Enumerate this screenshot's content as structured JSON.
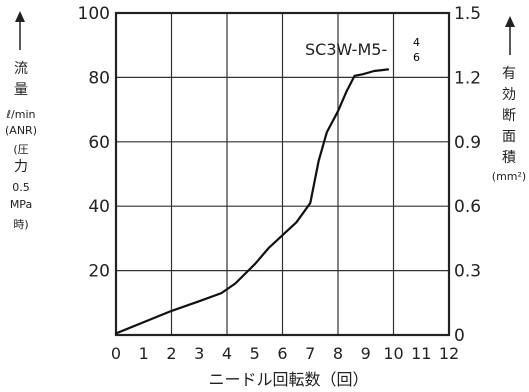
{
  "chart_data": {
    "type": "line",
    "title": "",
    "xlabel": "ニードル回転数（回）",
    "ylabel_left": [
      "流",
      "量",
      "ℓ/min",
      "(ANR)",
      "(圧",
      "力",
      "0.5",
      "MPa",
      "時)"
    ],
    "ylabel_right": [
      "有",
      "効",
      "断",
      "面",
      "積",
      "(mm²)"
    ],
    "xlim": [
      0,
      12
    ],
    "ylim_left": [
      0,
      100
    ],
    "ylim_right": [
      0,
      1.5
    ],
    "x_ticks": [
      "0",
      "1",
      "2",
      "3",
      "4",
      "5",
      "6",
      "7",
      "8",
      "9",
      "10",
      "11",
      "12"
    ],
    "y_ticks_left": [
      "20",
      "40",
      "60",
      "80",
      "100"
    ],
    "y_ticks_right": [
      "0",
      "0.3",
      "0.6",
      "0.9",
      "1.2",
      "1.5"
    ],
    "grid": true,
    "annotation": {
      "base": "SC3W-M5-",
      "sup": "4",
      "sub": "6"
    },
    "series": [
      {
        "x": [
          0,
          1,
          2,
          3,
          3.8,
          4.3,
          5,
          5.5,
          6,
          6.5,
          7,
          7.3,
          7.6,
          8,
          8.3,
          8.6,
          8.9,
          9.3,
          9.8
        ],
        "y": [
          0.5,
          4,
          7.5,
          10.5,
          13,
          16,
          22,
          27,
          31,
          35,
          41,
          54,
          63,
          69.5,
          75.5,
          80.5,
          81,
          82,
          82.5
        ]
      }
    ]
  }
}
